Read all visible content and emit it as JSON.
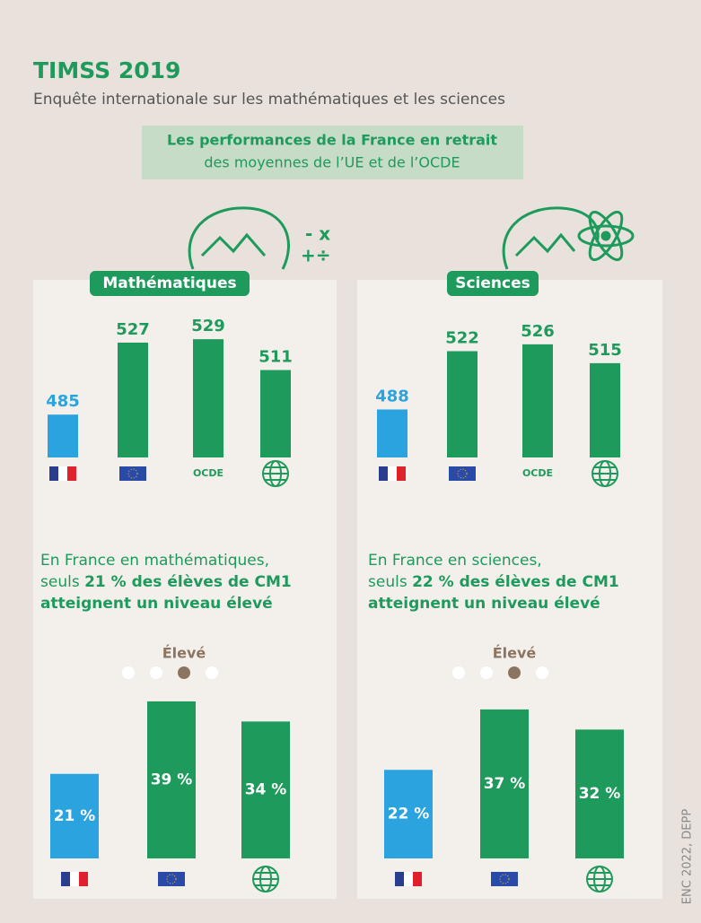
{
  "header": {
    "title": "TIMSS 2019",
    "subtitle": "Enquête internationale sur les mathématiques et les sciences",
    "banner_bold": "Les performances de la France en retrait",
    "banner": "des moyennes de l’UE et de l’OCDE"
  },
  "chart_data": [
    {
      "type": "bar",
      "title": "Mathématiques",
      "categories": [
        null,
        null,
        "OCDE",
        null
      ],
      "values": [
        485,
        527,
        529,
        511
      ],
      "colors": [
        "#2ba3df",
        "#1e9a5c",
        "#1e9a5c",
        "#1e9a5c"
      ],
      "ylim": [
        460,
        550
      ]
    },
    {
      "type": "bar",
      "title": "Sciences",
      "categories": [
        null,
        null,
        "OCDE",
        null
      ],
      "values": [
        488,
        522,
        526,
        515
      ],
      "colors": [
        "#2ba3df",
        "#1e9a5c",
        "#1e9a5c",
        "#1e9a5c"
      ],
      "ylim": [
        460,
        550
      ]
    },
    {
      "type": "bar",
      "description": [
        "En France en mathématiques,",
        "seuls ",
        "21 % des élèves de CM1",
        "atteignent un niveau élevé"
      ],
      "legend_label": "Élevé",
      "categories": [
        null,
        null,
        null
      ],
      "values": [
        21,
        39,
        34
      ],
      "value_labels": [
        "21 %",
        "39 %",
        "34 %"
      ],
      "colors": [
        "#2ba3df",
        "#1e9a5c",
        "#1e9a5c"
      ],
      "ylim": [
        0,
        45
      ]
    },
    {
      "type": "bar",
      "description": [
        "En France en sciences,",
        "seuls ",
        "22 % des élèves de CM1",
        "atteignent un niveau élevé"
      ],
      "legend_label": "Élevé",
      "categories": [
        null,
        null,
        null
      ],
      "values": [
        22,
        37,
        32
      ],
      "value_labels": [
        "22 %",
        "37 %",
        "32 %"
      ],
      "colors": [
        "#2ba3df",
        "#1e9a5c",
        "#1e9a5c"
      ],
      "ylim": [
        0,
        45
      ]
    }
  ],
  "source": "ENC 2022, DEPP"
}
